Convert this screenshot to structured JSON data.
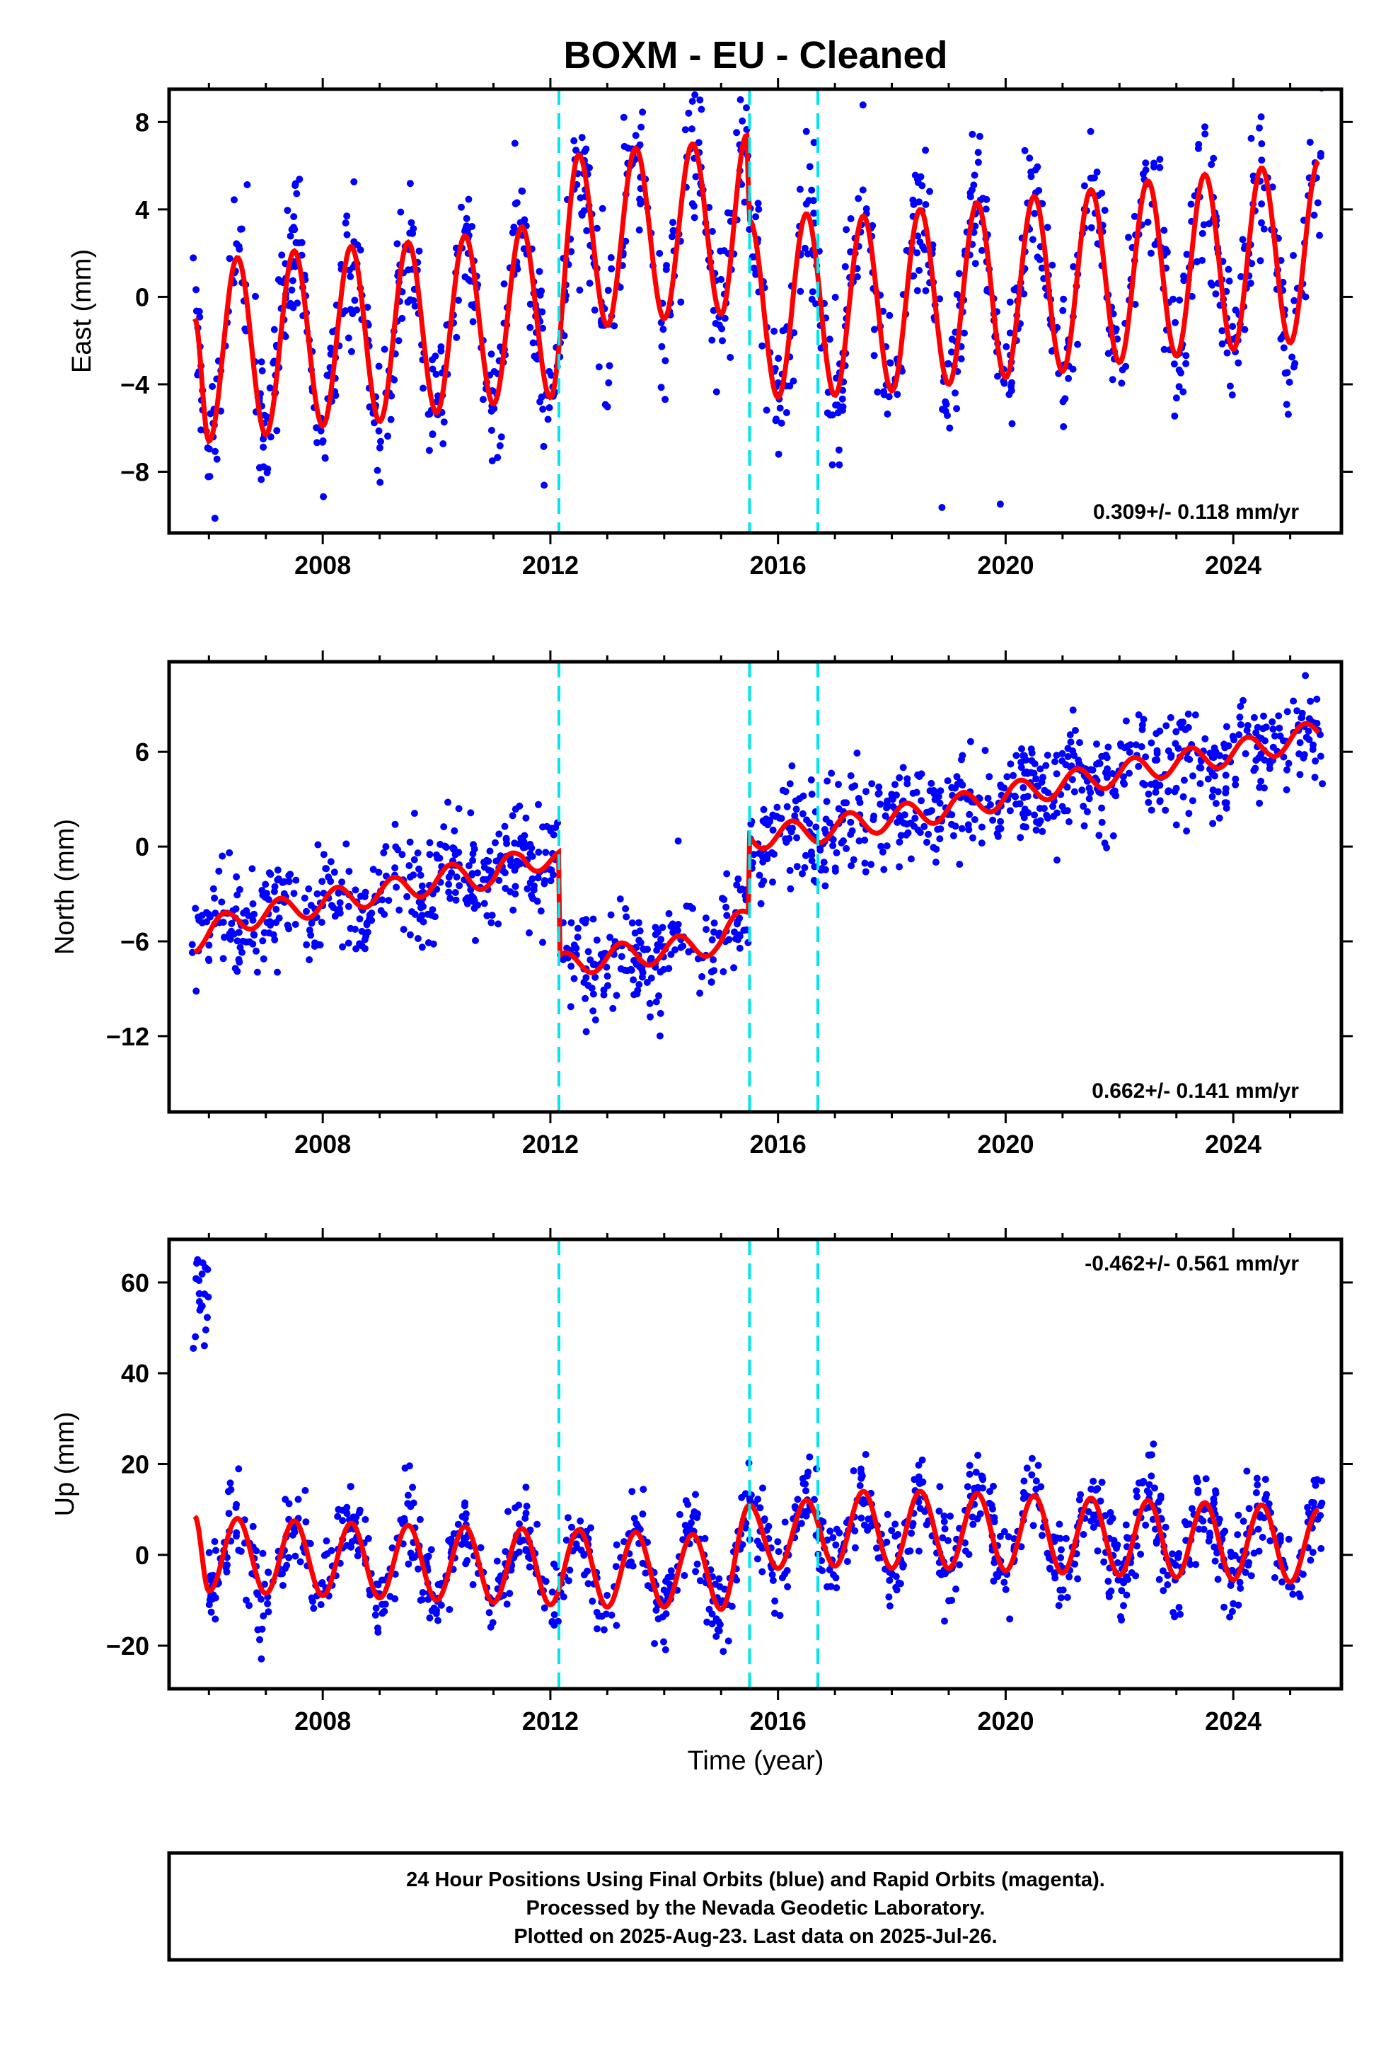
{
  "chart_data": {
    "type": "scatter",
    "title": "BOXM  - EU - Cleaned",
    "xlabel": "Time (year)",
    "xlim": [
      2005.3,
      2025.9
    ],
    "x_ticks": [
      "2008",
      "2012",
      "2016",
      "2020",
      "2024"
    ],
    "breaks": [
      2012.15,
      2015.5,
      2016.7
    ],
    "colors": {
      "data": "#0000ff",
      "model": "#ff0000",
      "break": "#00e5ee",
      "frame": "#000000"
    },
    "panels": [
      {
        "name": "east",
        "ylabel": "East (mm)",
        "ylim": [
          -10.8,
          9.5
        ],
        "y_ticks": [
          8,
          4,
          0,
          -4,
          -8
        ],
        "y_tick_labels": [
          "8",
          "4",
          "0",
          "−4",
          "−8"
        ],
        "rate_label": "0.309+/- 0.118 mm/yr",
        "rate_position": "bottom-right",
        "series": [
          {
            "kind": "model",
            "x": [
              2005.75,
              2006.0,
              2006.5,
              2007.0,
              2007.5,
              2008.0,
              2008.5,
              2009.0,
              2009.5,
              2010.0,
              2010.5,
              2011.0,
              2011.5,
              2012.0,
              2012.5,
              2013.0,
              2013.5,
              2014.0,
              2014.5,
              2015.0,
              2015.45,
              2015.5,
              2016.0,
              2016.5,
              2017.0,
              2017.5,
              2018.0,
              2018.5,
              2019.0,
              2019.5,
              2020.0,
              2020.5,
              2021.0,
              2021.5,
              2022.0,
              2022.5,
              2023.0,
              2023.5,
              2024.0,
              2024.5,
              2025.0,
              2025.5
            ],
            "y": [
              -1.0,
              -6.6,
              1.8,
              -6.3,
              2.1,
              -5.9,
              2.3,
              -5.7,
              2.5,
              -5.3,
              2.8,
              -4.9,
              3.2,
              -4.6,
              6.5,
              -1.3,
              6.8,
              -1.0,
              7.0,
              -0.8,
              7.4,
              3.5,
              -4.6,
              3.8,
              -4.5,
              3.7,
              -4.3,
              4.0,
              -4.0,
              4.3,
              -3.7,
              4.6,
              -3.4,
              4.9,
              -3.0,
              5.3,
              -2.7,
              5.6,
              -2.4,
              5.9,
              -2.1,
              6.2
            ]
          },
          {
            "kind": "data",
            "label": "24 Hour Positions Using Final Orbits",
            "range": [
              2005.7,
              2025.57
            ],
            "scatter_mm": 1.6
          }
        ]
      },
      {
        "name": "north",
        "ylabel": "North (mm)",
        "ylim": [
          -16.8,
          11.7
        ],
        "y_ticks": [
          6,
          0,
          -6,
          -12
        ],
        "y_tick_labels": [
          "6",
          "0",
          "−6",
          "−12"
        ],
        "rate_label": "0.662+/- 0.141 mm/yr",
        "rate_position": "bottom-right",
        "series": [
          {
            "kind": "model",
            "x": [
              2005.75,
              2006.5,
              2007.5,
              2008.5,
              2009.5,
              2010.5,
              2011.0,
              2011.5,
              2012.15,
              2012.15,
              2013.0,
              2014.0,
              2015.0,
              2015.5,
              2015.5,
              2016.5,
              2017.5,
              2018.5,
              2019.5,
              2020.5,
              2021.5,
              2022.5,
              2023.5,
              2024.5,
              2025.5
            ],
            "y": [
              -5.9,
              -4.6,
              -3.9,
              -3.2,
              -2.6,
              -1.7,
              -2.1,
              -0.6,
              -1.0,
              -7.6,
              -7.0,
              -6.6,
              -6.0,
              -4.2,
              0.6,
              0.9,
              1.5,
              2.1,
              2.8,
              3.6,
              4.3,
              5.0,
              5.6,
              6.3,
              7.2
            ],
            "annual_amplitude": 0.8
          },
          {
            "kind": "data",
            "label": "24 Hour Positions Using Final Orbits",
            "range": [
              2005.7,
              2025.57
            ],
            "scatter_mm": 1.6
          }
        ]
      },
      {
        "name": "up",
        "ylabel": "Up (mm)",
        "ylim": [
          -29.5,
          69.5
        ],
        "y_ticks": [
          60,
          40,
          20,
          0,
          -20
        ],
        "y_tick_labels": [
          "60",
          "40",
          "20",
          "0",
          "−20"
        ],
        "rate_label": "-0.462+/- 0.561 mm/yr",
        "rate_position": "top-right",
        "series": [
          {
            "kind": "model",
            "x": [
              2005.75,
              2006.0,
              2006.5,
              2007.0,
              2007.5,
              2008.0,
              2008.5,
              2009.0,
              2009.5,
              2010.0,
              2010.5,
              2011.0,
              2011.5,
              2012.0,
              2012.5,
              2013.0,
              2013.5,
              2014.0,
              2014.5,
              2015.0,
              2015.5,
              2016.0,
              2016.5,
              2017.0,
              2017.5,
              2018.0,
              2018.5,
              2019.0,
              2019.5,
              2020.0,
              2020.5,
              2021.0,
              2021.5,
              2022.0,
              2022.5,
              2023.0,
              2023.5,
              2024.0,
              2024.5,
              2025.0,
              2025.5
            ],
            "y": [
              8.5,
              -8.0,
              8.0,
              -8.5,
              7.5,
              -9.0,
              7.0,
              -9.5,
              6.5,
              -10.0,
              6.2,
              -10.5,
              5.8,
              -11.0,
              5.5,
              -11.5,
              5.0,
              -11.5,
              4.5,
              -12.0,
              11.0,
              -3.0,
              12.0,
              -2.5,
              14.0,
              -3.0,
              14.0,
              -3.0,
              13.5,
              -3.5,
              13.0,
              -4.0,
              12.5,
              -4.5,
              12.0,
              -5.0,
              11.5,
              -5.5,
              11.0,
              -6.0,
              10.0
            ]
          },
          {
            "kind": "data",
            "label": "24 Hour Positions Using Final Orbits",
            "range": [
              2005.7,
              2025.57
            ],
            "scatter_mm": 5.0
          }
        ]
      }
    ]
  },
  "footer": {
    "line1": "24 Hour Positions Using Final Orbits (blue) and Rapid Orbits (magenta).",
    "line2": "Processed by the Nevada Geodetic Laboratory.",
    "line3": "Plotted on 2025-Aug-23. Last data on 2025-Jul-26."
  }
}
